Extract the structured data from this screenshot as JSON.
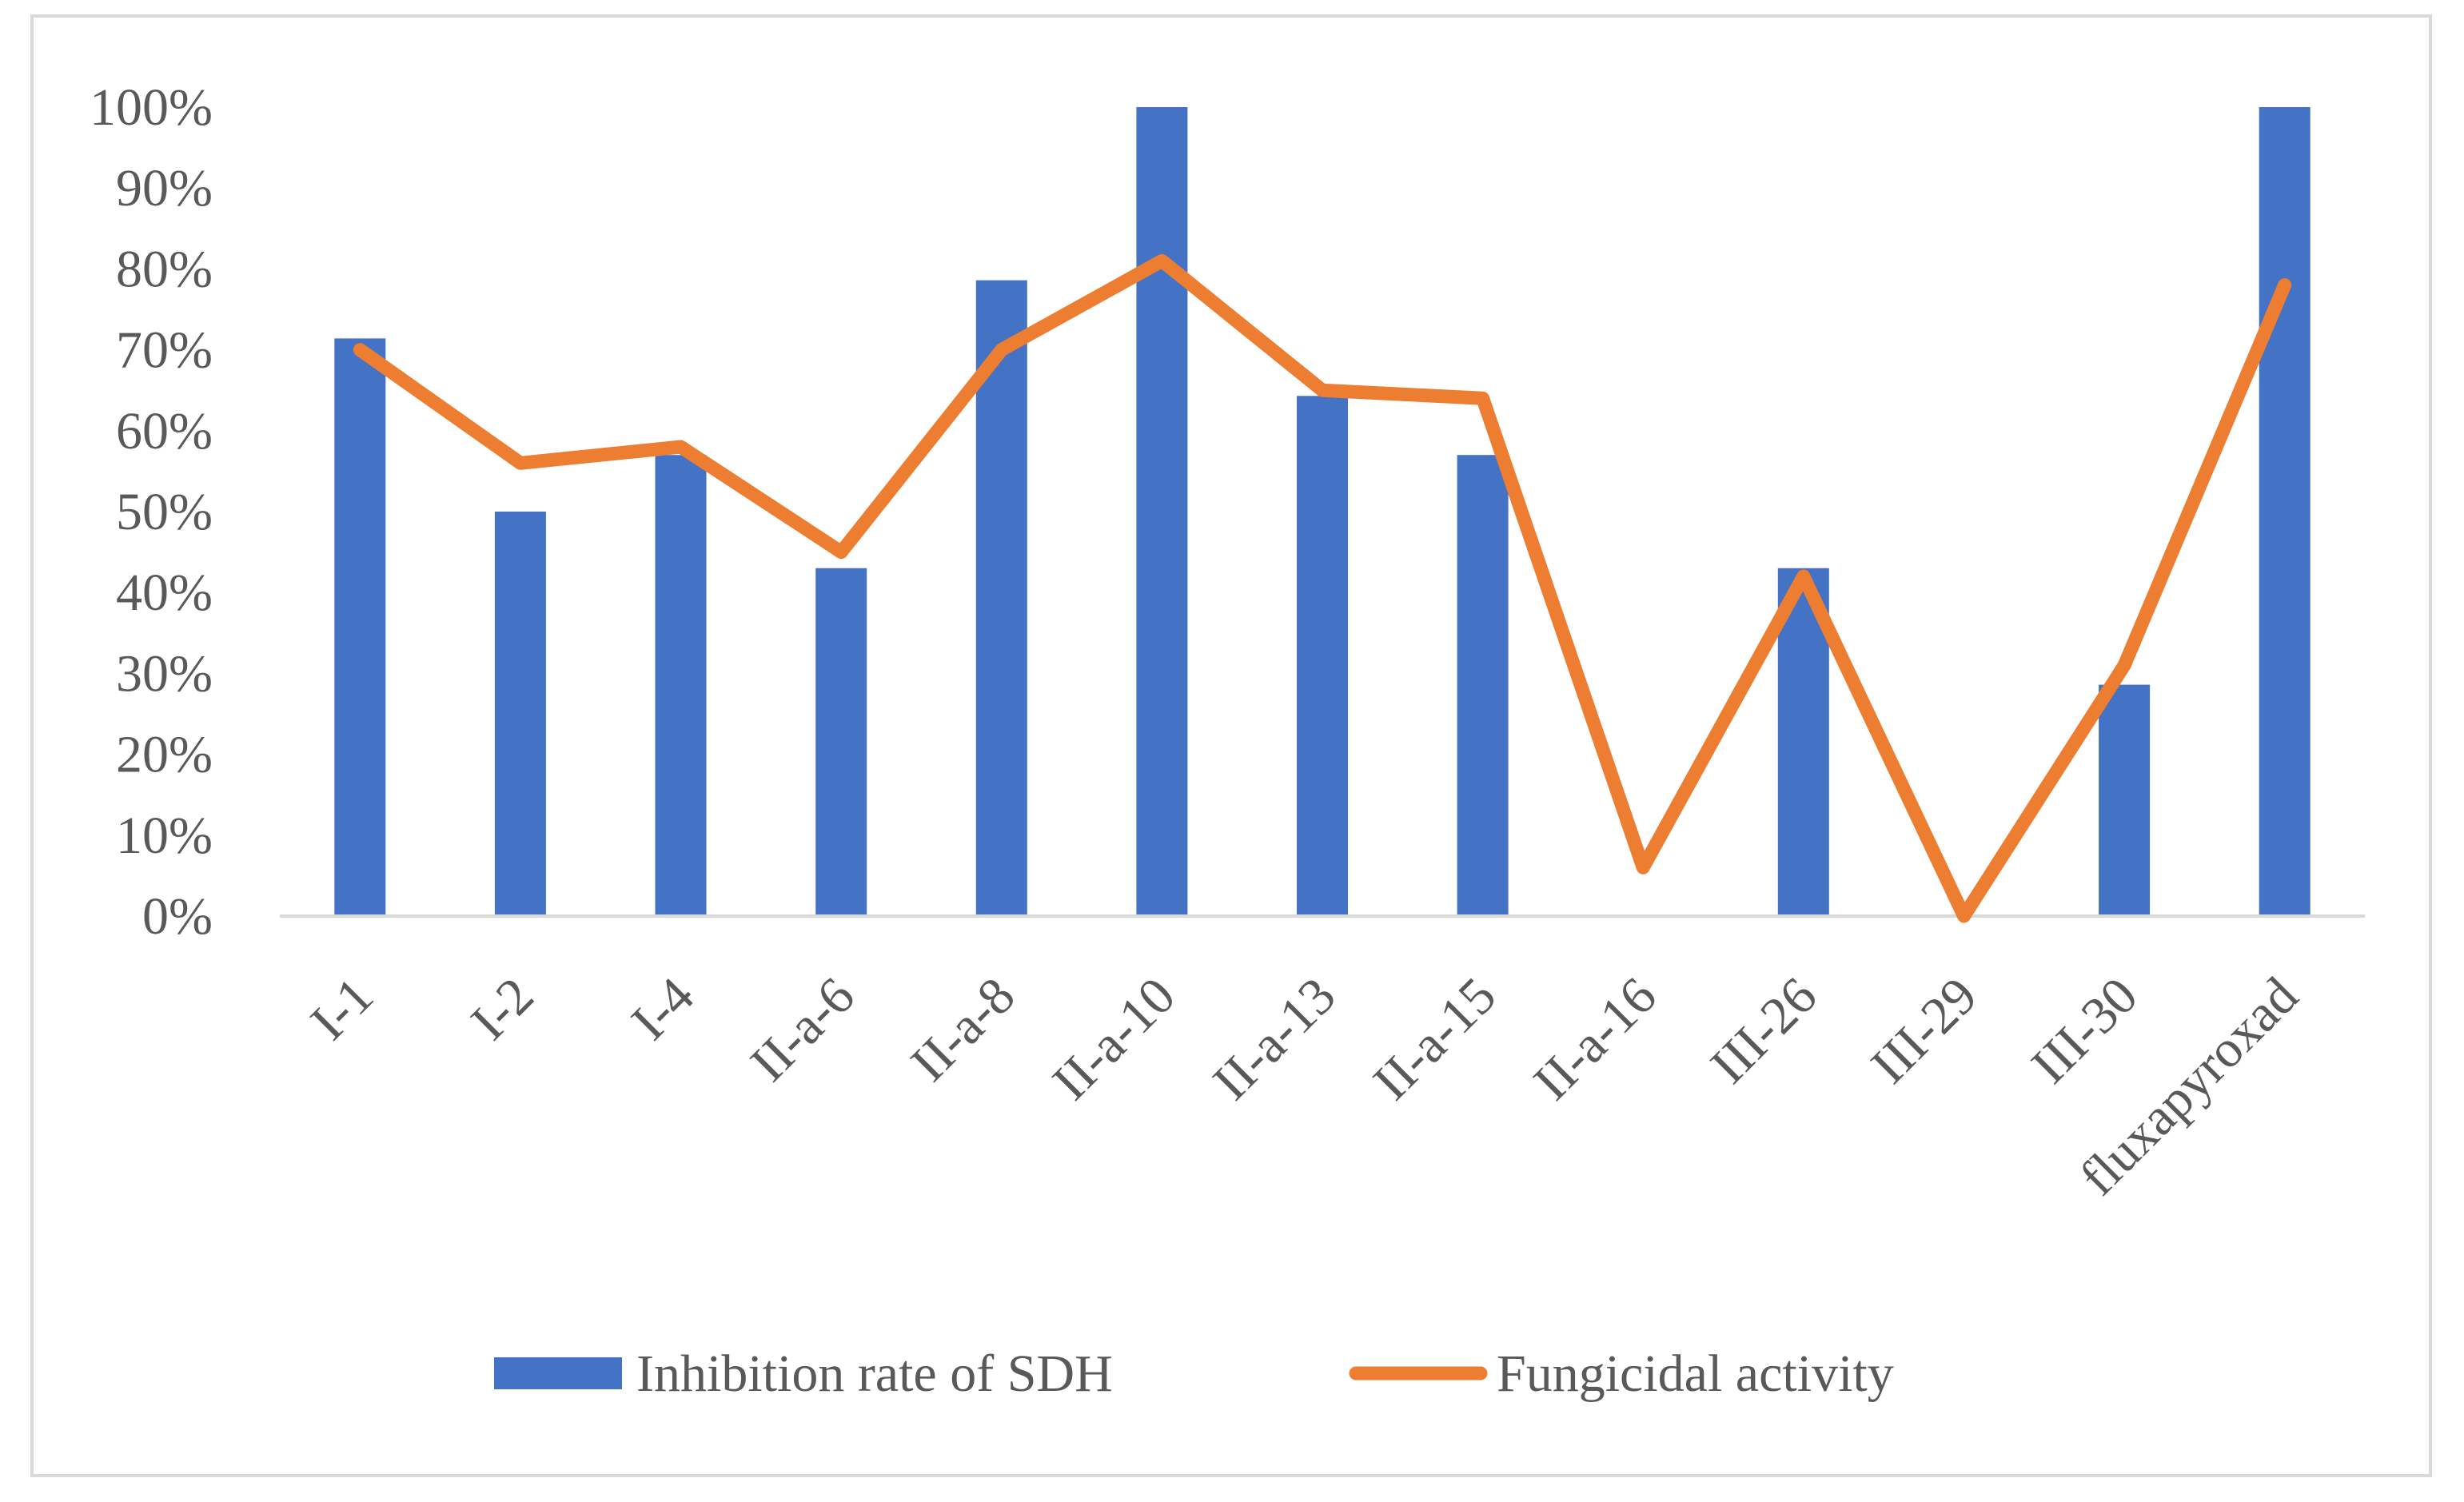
{
  "chart_data": {
    "type": "bar+line",
    "categories": [
      "I-1",
      "I-2",
      "I-4",
      "II-a-6",
      "II-a-8",
      "II-a-10",
      "II-a-13",
      "II-a-15",
      "II-a-16",
      "III-26",
      "III-29",
      "III-30",
      "fluxapyroxad"
    ],
    "series": [
      {
        "name": "Inhibition rate of  SDH",
        "kind": "bar",
        "color": "#4472c4",
        "values": [
          0.714,
          0.5,
          0.57,
          0.43,
          0.786,
          1.0,
          0.643,
          0.57,
          0.0,
          0.43,
          0.0,
          0.286,
          1.0
        ]
      },
      {
        "name": "Fungicidal activity",
        "kind": "line",
        "color": "#ed7d31",
        "values": [
          0.7,
          0.56,
          0.58,
          0.45,
          0.7,
          0.81,
          0.65,
          0.64,
          0.06,
          0.42,
          0.0,
          0.31,
          0.78
        ]
      }
    ],
    "ylim": [
      0,
      1
    ],
    "yticks": [
      {
        "value": 0,
        "label": "0%"
      },
      {
        "value": 0.1,
        "label": "10%"
      },
      {
        "value": 0.2,
        "label": "20%"
      },
      {
        "value": 0.3,
        "label": "30%"
      },
      {
        "value": 0.4,
        "label": "40%"
      },
      {
        "value": 0.5,
        "label": "50%"
      },
      {
        "value": 0.6,
        "label": "60%"
      },
      {
        "value": 0.7,
        "label": "70%"
      },
      {
        "value": 0.8,
        "label": "80%"
      },
      {
        "value": 0.9,
        "label": "90%"
      },
      {
        "value": 1.0,
        "label": "100%"
      }
    ],
    "title": "",
    "xlabel": "",
    "ylabel": "",
    "grid": false,
    "legend": "bottom"
  }
}
